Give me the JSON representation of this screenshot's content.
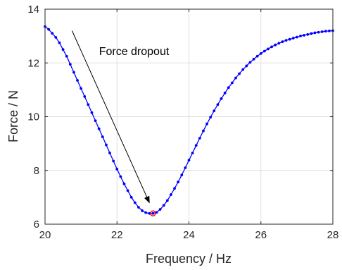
{
  "chart_data": {
    "type": "line",
    "xlabel": "Frequency / Hz",
    "ylabel": "Force / N",
    "xlim": [
      20,
      28
    ],
    "ylim": [
      6,
      14
    ],
    "xticks": [
      20,
      22,
      24,
      26,
      28
    ],
    "yticks": [
      6,
      8,
      10,
      12,
      14
    ],
    "grid": true,
    "series": [
      {
        "color": "#0000ff",
        "marker": "dot",
        "x": [
          20.0,
          20.1,
          20.2,
          20.3,
          20.4,
          20.5,
          20.6,
          20.7,
          20.8,
          20.9,
          21.0,
          21.1,
          21.2,
          21.3,
          21.4,
          21.5,
          21.6,
          21.7,
          21.8,
          21.9,
          22.0,
          22.1,
          22.2,
          22.3,
          22.4,
          22.5,
          22.6,
          22.7,
          22.8,
          22.9,
          23.0,
          23.1,
          23.2,
          23.3,
          23.4,
          23.5,
          23.6,
          23.7,
          23.8,
          23.9,
          24.0,
          24.1,
          24.2,
          24.3,
          24.4,
          24.5,
          24.6,
          24.7,
          24.8,
          24.9,
          25.0,
          25.1,
          25.2,
          25.3,
          25.4,
          25.5,
          25.6,
          25.7,
          25.8,
          25.9,
          26.0,
          26.1,
          26.2,
          26.3,
          26.4,
          26.5,
          26.6,
          26.7,
          26.8,
          26.9,
          27.0,
          27.1,
          27.2,
          27.3,
          27.4,
          27.5,
          27.6,
          27.7,
          27.8,
          27.9,
          28.0
        ],
        "y": [
          13.35,
          13.25,
          13.1,
          12.95,
          12.75,
          12.5,
          12.25,
          11.95,
          11.65,
          11.35,
          11.05,
          10.75,
          10.45,
          10.15,
          9.85,
          9.55,
          9.25,
          8.95,
          8.65,
          8.35,
          8.05,
          7.77,
          7.5,
          7.25,
          7.0,
          6.8,
          6.63,
          6.5,
          6.43,
          6.4,
          6.4,
          6.44,
          6.55,
          6.7,
          6.88,
          7.1,
          7.33,
          7.57,
          7.83,
          8.1,
          8.38,
          8.65,
          8.93,
          9.2,
          9.47,
          9.73,
          9.98,
          10.22,
          10.45,
          10.67,
          10.88,
          11.08,
          11.26,
          11.44,
          11.6,
          11.75,
          11.89,
          12.02,
          12.14,
          12.25,
          12.35,
          12.44,
          12.52,
          12.6,
          12.67,
          12.73,
          12.79,
          12.84,
          12.88,
          12.92,
          12.96,
          13.0,
          13.03,
          13.06,
          13.09,
          13.12,
          13.14,
          13.16,
          13.18,
          13.19,
          13.2
        ]
      }
    ],
    "highlight_point": {
      "x": 23.0,
      "y": 6.4,
      "color": "#ff0000"
    },
    "annotation": {
      "text": "Force dropout",
      "text_x": 21.5,
      "text_y": 12.3,
      "arrow_from": [
        20.75,
        13.2
      ],
      "arrow_to": [
        22.9,
        6.8
      ]
    }
  }
}
